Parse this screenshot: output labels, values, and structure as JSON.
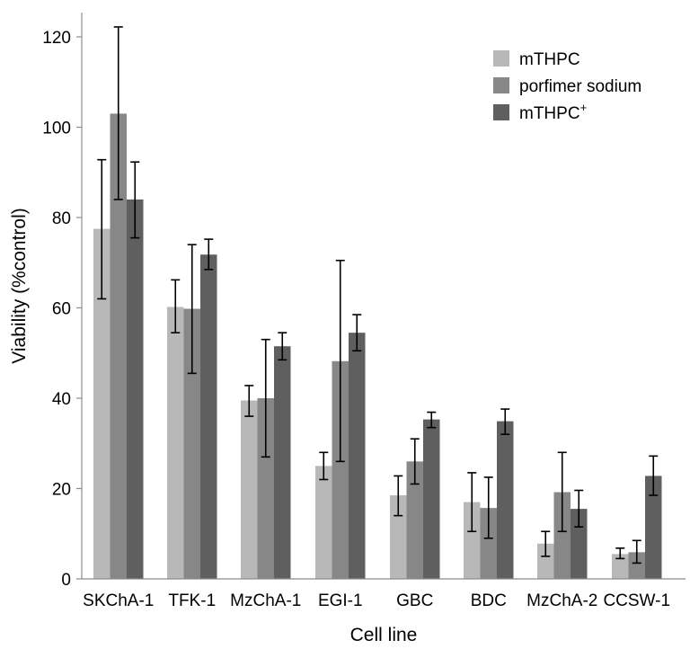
{
  "chart_data": {
    "type": "bar",
    "title": "",
    "xlabel": "Cell line",
    "ylabel": "Viability (%control)",
    "ylim": [
      0,
      120
    ],
    "yticks": [
      0,
      20,
      40,
      60,
      80,
      100,
      120
    ],
    "grid": false,
    "legend_position": "top-right",
    "categories": [
      "SKChA-1",
      "TFK-1",
      "MzChA-1",
      "EGI-1",
      "GBC",
      "BDC",
      "MzChA-2",
      "CCSW-1"
    ],
    "series": [
      {
        "name": "mTHPC",
        "color": "#b8b8b8",
        "values": [
          77.5,
          60.2,
          39.5,
          25.0,
          18.5,
          17.0,
          7.8,
          5.5
        ],
        "error_low": [
          62.0,
          54.5,
          36.0,
          22.0,
          14.0,
          10.5,
          5.0,
          4.5
        ],
        "error_high": [
          92.8,
          66.2,
          42.8,
          28.0,
          22.8,
          23.5,
          10.5,
          6.8
        ]
      },
      {
        "name": "porfimer sodium",
        "color": "#878787",
        "values": [
          103.0,
          59.8,
          40.0,
          48.2,
          26.0,
          15.7,
          19.2,
          5.9
        ],
        "error_low": [
          84.0,
          45.5,
          27.0,
          26.0,
          21.0,
          9.0,
          10.5,
          3.5
        ],
        "error_high": [
          122.2,
          74.0,
          53.0,
          70.5,
          31.0,
          22.5,
          28.0,
          8.5
        ]
      },
      {
        "name": "mTHPC",
        "superscript": "+",
        "color": "#5f5f5f",
        "values": [
          84.0,
          71.8,
          51.5,
          54.5,
          35.3,
          34.9,
          15.5,
          22.8
        ],
        "error_low": [
          75.5,
          68.5,
          48.5,
          50.5,
          33.5,
          32.0,
          11.5,
          18.5
        ],
        "error_high": [
          92.3,
          75.2,
          54.5,
          58.5,
          36.9,
          37.6,
          19.6,
          27.2
        ]
      }
    ]
  }
}
